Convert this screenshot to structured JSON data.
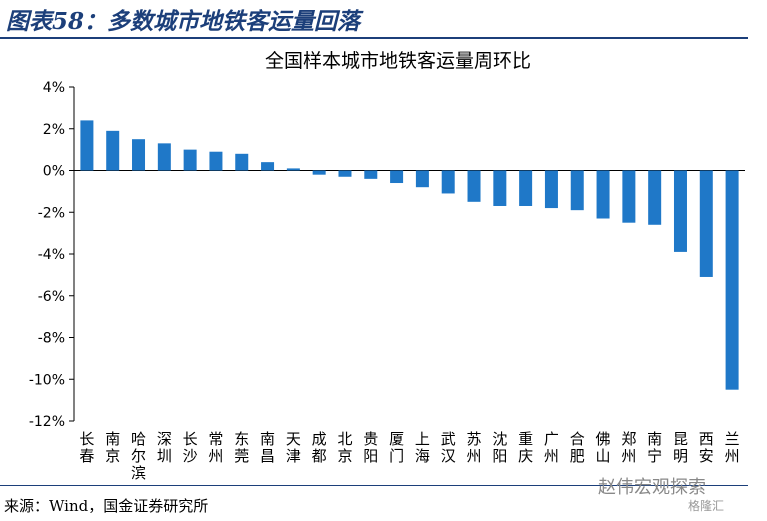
{
  "figure_title": "图表58：多数城市地铁客运量回落",
  "source_text": "来源：Wind，国金证券研究所",
  "watermark": {
    "text": "赵伟宏观探索",
    "sub": "格隆汇"
  },
  "colors": {
    "bar": "#1f78c8",
    "title": "#1c3f7a",
    "axis": "#000000"
  },
  "chart_data": {
    "type": "bar",
    "title": "全国样本城市地铁客运量周环比",
    "xlabel": "",
    "ylabel": "",
    "ylim": [
      -12,
      4
    ],
    "yticks": [
      4,
      2,
      0,
      -2,
      -4,
      -6,
      -8,
      -10,
      -12
    ],
    "ytick_labels": [
      "4%",
      "2%",
      "0%",
      "-2%",
      "-4%",
      "-6%",
      "-8%",
      "-10%",
      "-12%"
    ],
    "grid": false,
    "categories": [
      "长春",
      "南京",
      "哈尔滨",
      "深圳",
      "长沙",
      "常州",
      "东莞",
      "南昌",
      "天津",
      "成都",
      "北京",
      "贵阳",
      "厦门",
      "上海",
      "武汉",
      "苏州",
      "沈阳",
      "重庆",
      "广州",
      "合肥",
      "佛山",
      "郑州",
      "南宁",
      "昆明",
      "西安",
      "兰州"
    ],
    "values": [
      2.4,
      1.9,
      1.5,
      1.3,
      1.0,
      0.9,
      0.8,
      0.4,
      0.1,
      -0.2,
      -0.3,
      -0.4,
      -0.6,
      -0.8,
      -1.1,
      -1.5,
      -1.7,
      -1.7,
      -1.8,
      -1.9,
      -2.3,
      -2.5,
      -2.6,
      -3.9,
      -5.1,
      -10.5
    ]
  }
}
